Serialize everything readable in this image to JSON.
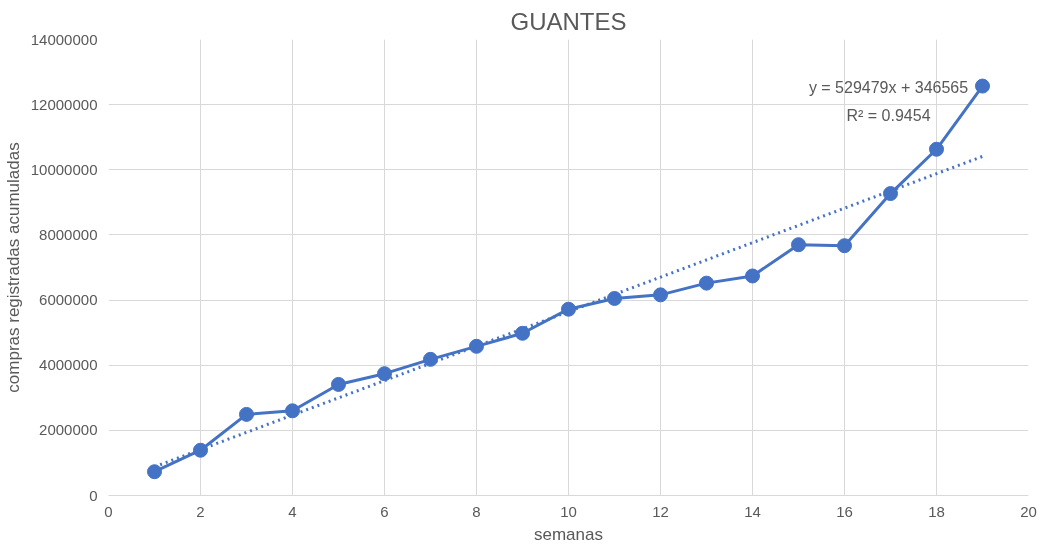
{
  "chart_data": {
    "type": "line",
    "title": "GUANTES",
    "xlabel": "semanas",
    "ylabel": "compras registradas acumuladas",
    "x": [
      1,
      2,
      3,
      4,
      5,
      6,
      7,
      8,
      9,
      10,
      11,
      12,
      13,
      14,
      15,
      16,
      17,
      18,
      19
    ],
    "series": [
      {
        "color": "#4472c4",
        "marker": "circle",
        "line_style": "solid",
        "values": [
          730000,
          1390000,
          2490000,
          2600000,
          3410000,
          3740000,
          4180000,
          4580000,
          4980000,
          5720000,
          6050000,
          6160000,
          6520000,
          6740000,
          7700000,
          7670000,
          9270000,
          10630000,
          12570000
        ]
      },
      {
        "type": "line",
        "color": "#4472c4",
        "marker": "none",
        "line_style": "dotted",
        "x": [
          1,
          19
        ],
        "values": [
          880000,
          10410000
        ]
      }
    ],
    "annotations": [
      "y = 529479x + 346565",
      "R² = 0.9454"
    ],
    "xlim": [
      0,
      20
    ],
    "xticks": [
      0,
      2,
      4,
      6,
      8,
      10,
      12,
      14,
      16,
      18,
      20
    ],
    "ylim": [
      0,
      14000000
    ],
    "yticks": [
      0,
      2000000,
      4000000,
      6000000,
      8000000,
      10000000,
      12000000,
      14000000
    ],
    "grid": true
  }
}
